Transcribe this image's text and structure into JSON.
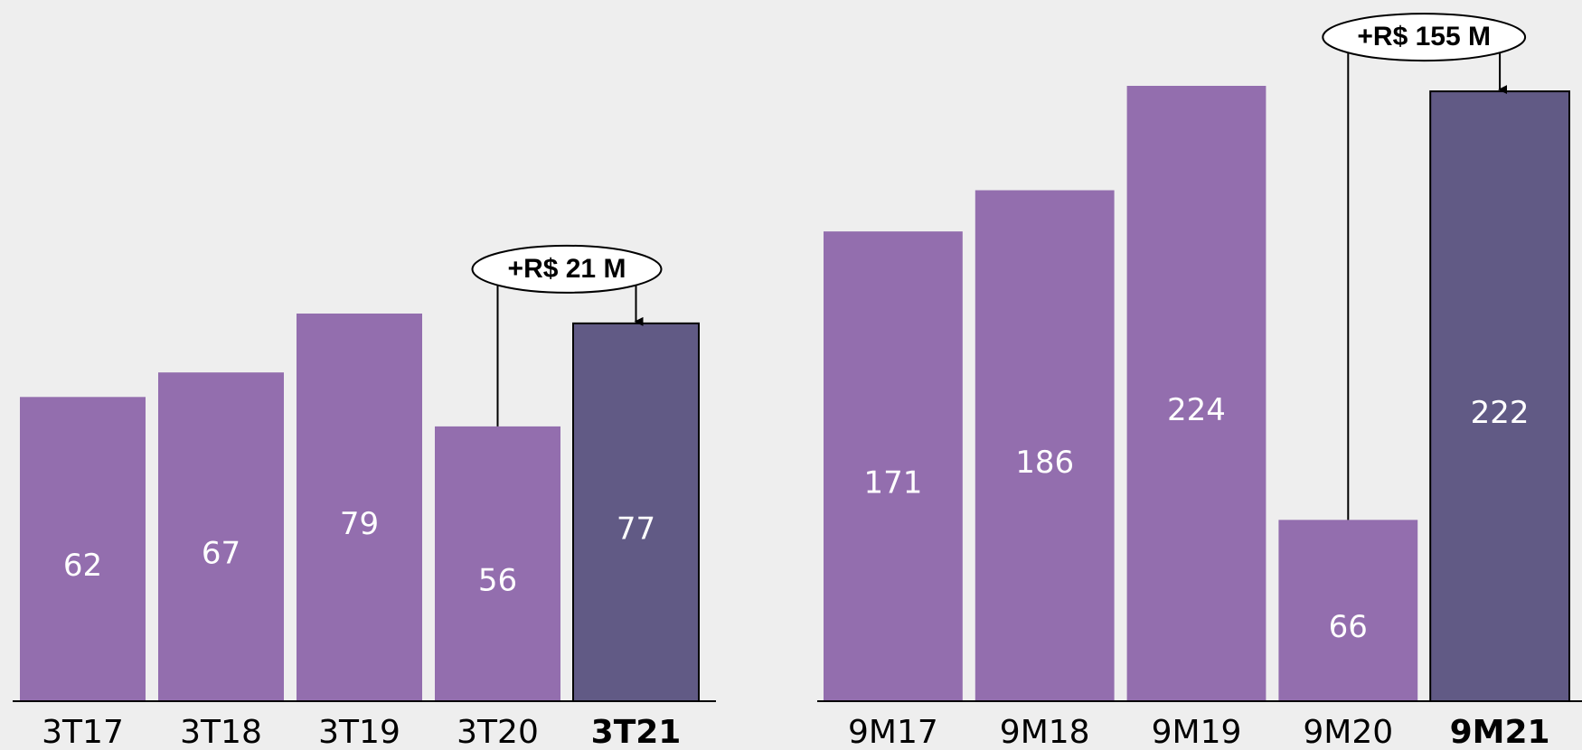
{
  "chart_data": [
    {
      "type": "bar",
      "categories": [
        "3T17",
        "3T18",
        "3T19",
        "3T20",
        "3T21"
      ],
      "values": [
        62,
        67,
        79,
        56,
        77
      ],
      "color": "#936eae",
      "highlight_color": "#615a85",
      "annotation": "+R$ 21 M"
    },
    {
      "type": "bar",
      "categories": [
        "9M17",
        "9M18",
        "9M19",
        "9M20",
        "9M21"
      ],
      "values": [
        171,
        186,
        224,
        66,
        222
      ],
      "color": "#936eae",
      "highlight_color": "#615a85",
      "annotation": "+R$ 155 M"
    }
  ]
}
